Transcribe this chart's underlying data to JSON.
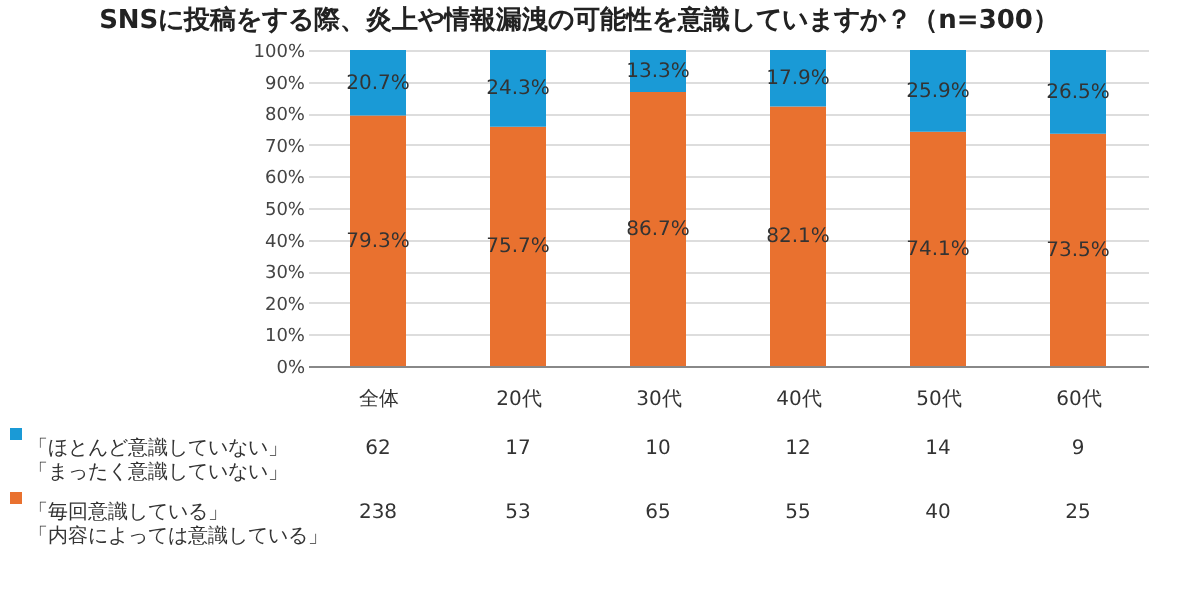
{
  "chart_data": {
    "type": "bar",
    "title": "SNSに投稿をする際、炎上や情報漏洩の可能性を意識していますか？（n=300）",
    "categories": [
      "全体",
      "20代",
      "30代",
      "40代",
      "50代",
      "60代"
    ],
    "stacked": true,
    "series": [
      {
        "name": "「毎回意識している」「内容によっては意識している」",
        "color": "#e9712f",
        "values": [
          79.3,
          75.7,
          86.7,
          82.1,
          74.1,
          73.5
        ],
        "value_labels": [
          "79.3%",
          "75.7%",
          "86.7%",
          "82.1%",
          "74.1%",
          "73.5%"
        ]
      },
      {
        "name": "「ほとんど意識していない」「まったく意識していない」",
        "color": "#1a9ad6",
        "values": [
          20.7,
          24.3,
          13.3,
          17.9,
          25.9,
          26.5
        ],
        "value_labels": [
          "20.7%",
          "24.3%",
          "13.3%",
          "17.9%",
          "25.9%",
          "26.5%"
        ]
      }
    ],
    "annotations": [
      "238",
      "53",
      "65",
      "55",
      "40",
      "25",
      "62",
      "17",
      "10",
      "12",
      "14",
      "9"
    ],
    "ylim": [
      0,
      100
    ],
    "yticks": [
      {
        "value": 0,
        "label": "0%"
      },
      {
        "value": 10,
        "label": "10%"
      },
      {
        "value": 20,
        "label": "20%"
      },
      {
        "value": 30,
        "label": "30%"
      },
      {
        "value": 40,
        "label": "40%"
      },
      {
        "value": 50,
        "label": "50%"
      },
      {
        "value": 60,
        "label": "60%"
      },
      {
        "value": 70,
        "label": "70%"
      },
      {
        "value": 80,
        "label": "80%"
      },
      {
        "value": 90,
        "label": "90%"
      },
      {
        "value": 100,
        "label": "100%"
      }
    ],
    "grid": "y",
    "legend": "bottom left"
  }
}
